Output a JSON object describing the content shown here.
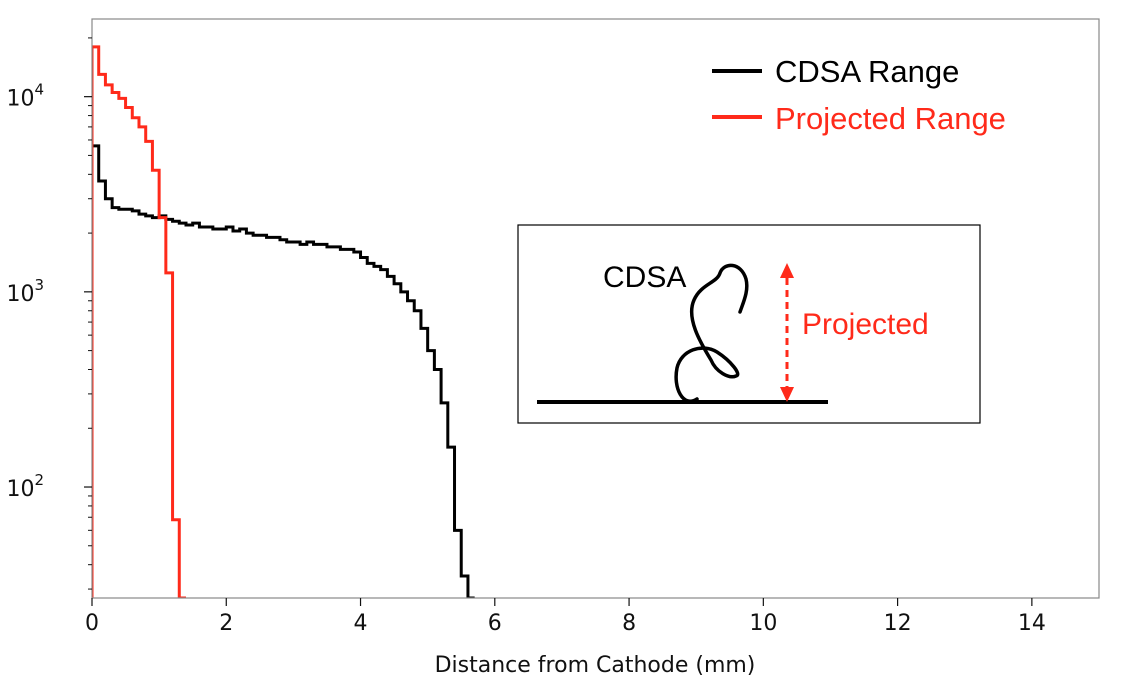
{
  "chart_data": {
    "type": "line",
    "title": "",
    "xlabel": "Distance from Cathode (mm)",
    "ylabel": "",
    "xlim": [
      0,
      15
    ],
    "ylim": [
      27,
      25000
    ],
    "yscale": "log",
    "grid": false,
    "x_ticks": [
      0,
      2,
      4,
      6,
      8,
      10,
      12,
      14
    ],
    "x_tick_labels": [
      "0",
      "2",
      "4",
      "6",
      "8",
      "10",
      "12",
      "14"
    ],
    "y_ticks": [
      100,
      1000,
      10000
    ],
    "y_tick_labels": [
      {
        "base": "10",
        "exp": "2"
      },
      {
        "base": "10",
        "exp": "3"
      },
      {
        "base": "10",
        "exp": "4"
      }
    ],
    "legend_position": "top-right",
    "series": [
      {
        "name": "CDSA Range",
        "color": "#000000",
        "bin_width": 0.1,
        "bin_starts": [
          0,
          0.1,
          0.2,
          0.3,
          0.4,
          0.5,
          0.6,
          0.7,
          0.8,
          0.9,
          1.0,
          1.1,
          1.2,
          1.3,
          1.4,
          1.5,
          1.6,
          1.7,
          1.8,
          1.9,
          2.0,
          2.1,
          2.2,
          2.3,
          2.4,
          2.5,
          2.6,
          2.7,
          2.8,
          2.9,
          3.0,
          3.1,
          3.2,
          3.3,
          3.4,
          3.5,
          3.6,
          3.7,
          3.8,
          3.9,
          4.0,
          4.1,
          4.2,
          4.3,
          4.4,
          4.5,
          4.6,
          4.7,
          4.8,
          4.9,
          5.0,
          5.1,
          5.2,
          5.3,
          5.4,
          5.5,
          5.6
        ],
        "values": [
          5600,
          3700,
          3000,
          2700,
          2650,
          2650,
          2600,
          2500,
          2450,
          2400,
          2450,
          2350,
          2300,
          2250,
          2200,
          2250,
          2150,
          2150,
          2100,
          2100,
          2150,
          2050,
          2100,
          2000,
          1950,
          1950,
          1900,
          1900,
          1850,
          1800,
          1800,
          1750,
          1800,
          1750,
          1750,
          1700,
          1700,
          1650,
          1650,
          1600,
          1500,
          1400,
          1350,
          1300,
          1200,
          1100,
          1000,
          900,
          800,
          650,
          500,
          400,
          270,
          160,
          60,
          35,
          20
        ]
      },
      {
        "name": "Projected Range",
        "color": "#ff2a1a",
        "bin_width": 0.1,
        "bin_starts": [
          0,
          0.1,
          0.2,
          0.3,
          0.4,
          0.5,
          0.6,
          0.7,
          0.8,
          0.9,
          1.0,
          1.1,
          1.2,
          1.3
        ],
        "values": [
          18000,
          13000,
          11500,
          10500,
          9800,
          8800,
          7800,
          7000,
          5900,
          4200,
          2400,
          1250,
          68,
          20
        ]
      }
    ],
    "inset": {
      "title": "CDSA",
      "arrow_label": "Projected"
    }
  }
}
